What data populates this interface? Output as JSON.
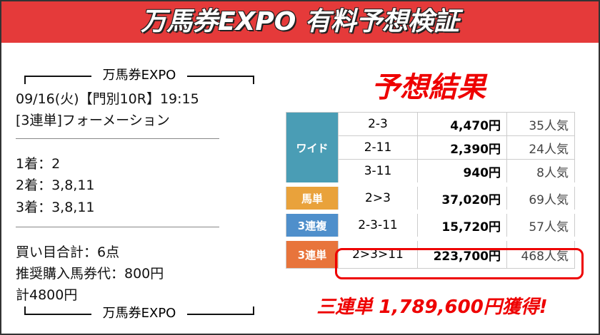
{
  "header": {
    "title": "万馬券EXPO 有料予想検証"
  },
  "left": {
    "header_brand": "万馬券EXPO",
    "race_info": "09/16(火)【門別10R】19:15",
    "bet_type": "[3連単]フォーメーション",
    "picks": [
      "1着：2",
      "2着：3,8,11",
      "3着：3,8,11"
    ],
    "summary": [
      "買い目合計：6点",
      "推奨購入馬券代：800円",
      "計4800円"
    ],
    "footer_brand": "万馬券EXPO"
  },
  "result": {
    "title": "予想結果",
    "footer": "三連単 1,789,600円獲得!"
  },
  "table": {
    "rows": [
      {
        "label": "ワイド",
        "entries": [
          [
            "2-3",
            "4,470円",
            "35人気"
          ],
          [
            "2-11",
            "2,390円",
            "24人気"
          ],
          [
            "3-11",
            "940円",
            "8人気"
          ]
        ]
      },
      {
        "label": "馬単",
        "entries": [
          [
            "2>3",
            "37,020円",
            "69人気"
          ]
        ]
      },
      {
        "label": "3連複",
        "entries": [
          [
            "2-3-11",
            "15,720円",
            "57人気"
          ]
        ]
      },
      {
        "label": "3連単",
        "entries": [
          [
            "2>3>11",
            "223,700円",
            "468人気"
          ]
        ]
      }
    ]
  }
}
